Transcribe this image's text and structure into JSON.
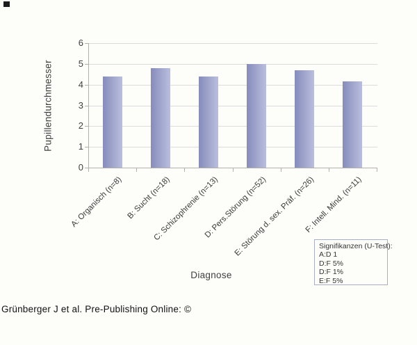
{
  "chart_data": {
    "type": "bar",
    "title": "",
    "categories": [
      "A: Organisch (n=8)",
      "B: Sucht (n=18)",
      "C: Schizophrenie (n=13)",
      "D: Pers.Störung (n=52)",
      "E: Störung d. sex. Präf. (n=26)",
      "F: Intell. Mind. (n=11)"
    ],
    "values": [
      4.4,
      4.8,
      4.4,
      5.0,
      4.7,
      4.15
    ],
    "xlabel": "Diagnose",
    "ylabel": "Pupillendurchmesser",
    "ylim": [
      0,
      6
    ],
    "yticks": [
      0,
      1,
      2,
      3,
      4,
      5,
      6
    ],
    "grid": true,
    "legend_position": "bottom-right-outside",
    "colors": {
      "bar_gradient_left": "#868cbc",
      "bar_gradient_right": "#babedd",
      "gridline": "#dcdcdc",
      "axis": "#b3b0aa",
      "text": "#3f3f3f"
    }
  },
  "legend_box": {
    "title": "Signifikanzen (U-Test):",
    "entries": [
      "A:D 1",
      "D:F 5%",
      "D:F 1%",
      "E:F 5%"
    ],
    "border_color": "#a7aec6"
  },
  "caption": "Grünberger J et al. Pre-Publishing Online: ©"
}
